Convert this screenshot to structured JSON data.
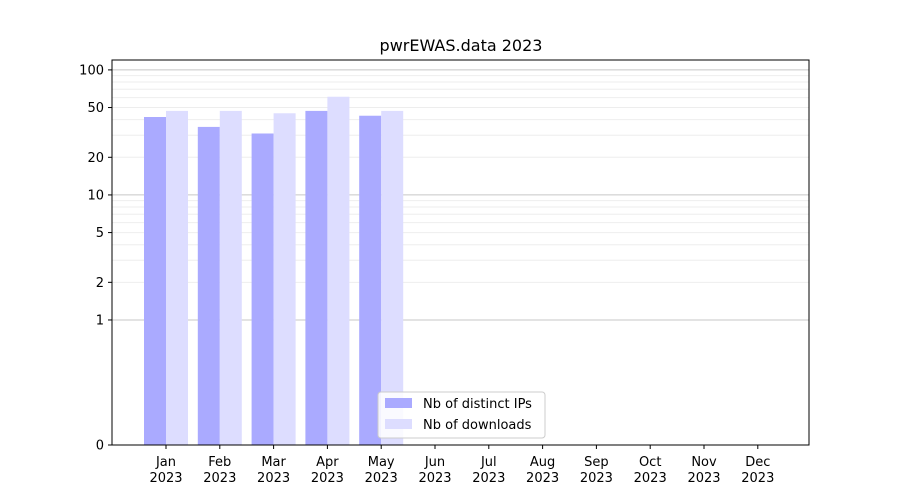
{
  "chart_data": {
    "type": "bar",
    "title": "pwrEWAS.data 2023",
    "xlabel": "",
    "ylabel": "",
    "y_scale": "symlog",
    "grid": true,
    "legend_position": "lower-center",
    "categories": [
      "Jan\n2023",
      "Feb\n2023",
      "Mar\n2023",
      "Apr\n2023",
      "May\n2023",
      "Jun\n2023",
      "Jul\n2023",
      "Aug\n2023",
      "Sep\n2023",
      "Oct\n2023",
      "Nov\n2023",
      "Dec\n2023"
    ],
    "y_ticks": [
      0,
      1,
      2,
      5,
      10,
      20,
      50,
      100
    ],
    "ylim": [
      0,
      120
    ],
    "series": [
      {
        "name": "Nb of distinct IPs",
        "color": "#aaaaff",
        "values": [
          42,
          35,
          31,
          47,
          43,
          0,
          0,
          0,
          0,
          0,
          0,
          0
        ]
      },
      {
        "name": "Nb of downloads",
        "color": "#ddddff",
        "values": [
          47,
          47,
          45,
          61,
          47,
          0,
          0,
          0,
          0,
          0,
          0,
          0
        ]
      }
    ]
  }
}
